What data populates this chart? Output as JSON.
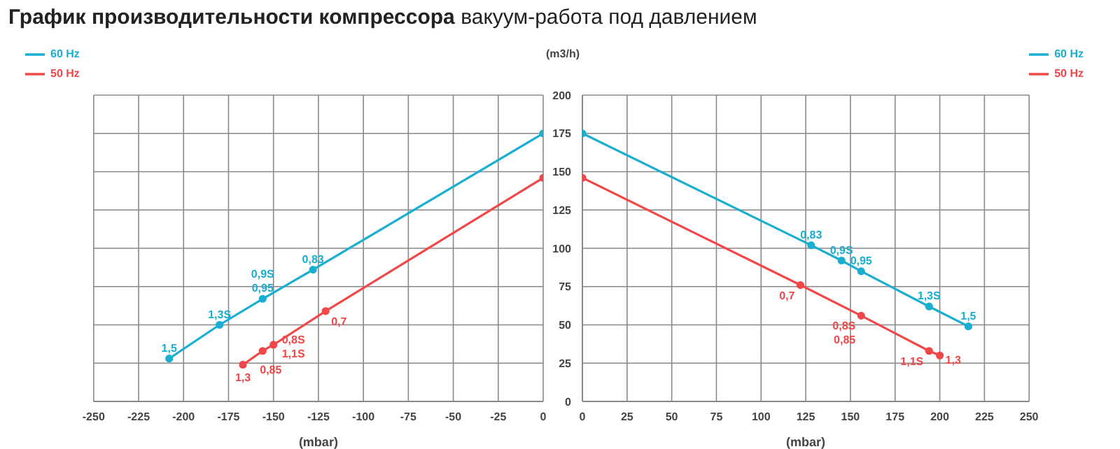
{
  "chart_data": [
    {
      "type": "line",
      "title": "График производительности компрессора",
      "subtitle": "вакуум-работа под давлением",
      "xlabel": "(mbar)",
      "xlim": [
        -250,
        0
      ],
      "xticks": [
        -250,
        -225,
        -200,
        -175,
        -150,
        -125,
        -100,
        -75,
        -50,
        -25,
        0
      ],
      "ylim": [
        0,
        200
      ],
      "yticks": [
        0,
        25,
        50,
        75,
        100,
        125,
        150,
        175,
        200
      ],
      "tick_labels": "x",
      "grid": true,
      "legend": "top left",
      "marker": "circle",
      "line_style": "solid",
      "series": [
        {
          "name": "60 Hz",
          "color": "#1aaed0",
          "x": [
            -208,
            -180,
            -156,
            -128,
            0
          ],
          "values": [
            28,
            50,
            67,
            86,
            175
          ]
        },
        {
          "name": "50 Hz",
          "color": "#f04848",
          "x": [
            -167,
            -156,
            -150,
            -121,
            0
          ],
          "values": [
            24,
            33,
            37,
            59,
            146
          ]
        }
      ],
      "annotations": [
        {
          "text": "1,5",
          "x": -208,
          "y": 28
        },
        {
          "text": "1,3S",
          "x": -180,
          "y": 50
        },
        {
          "text": "0,9S",
          "x": -156,
          "y": 67
        },
        {
          "text": "0,95",
          "x": -156,
          "y": 67
        },
        {
          "text": "0,83",
          "x": -128,
          "y": 86
        },
        {
          "text": "1,3",
          "x": -167,
          "y": 24
        },
        {
          "text": "0,85",
          "x": -156,
          "y": 33
        },
        {
          "text": "0,8S",
          "x": -150,
          "y": 37
        },
        {
          "text": "1,1S",
          "x": -150,
          "y": 37
        },
        {
          "text": "0,7",
          "x": -121,
          "y": 59
        }
      ]
    },
    {
      "type": "line",
      "xlabel": "(mbar)",
      "ylabel": "(m3/h)",
      "xlim": [
        0,
        250
      ],
      "xticks": [
        0,
        25,
        50,
        75,
        100,
        125,
        150,
        175,
        200,
        225,
        250
      ],
      "ylim": [
        0,
        200
      ],
      "yticks": [
        0,
        25,
        50,
        75,
        100,
        125,
        150,
        175,
        200
      ],
      "grid": true,
      "legend": "top right",
      "marker": "circle",
      "line_style": "solid",
      "series": [
        {
          "name": "60 Hz",
          "color": "#1aaed0",
          "x": [
            0,
            128,
            145,
            156,
            194,
            216
          ],
          "values": [
            175,
            102,
            92,
            85,
            62,
            49
          ]
        },
        {
          "name": "50 Hz",
          "color": "#f04848",
          "x": [
            0,
            122,
            156,
            194,
            200
          ],
          "values": [
            146,
            76,
            56,
            33,
            30
          ]
        }
      ],
      "annotations": [
        {
          "text": "0,83",
          "x": 128,
          "y": 102
        },
        {
          "text": "0,9S",
          "x": 145,
          "y": 92
        },
        {
          "text": "0,95",
          "x": 156,
          "y": 85
        },
        {
          "text": "1,3S",
          "x": 194,
          "y": 62
        },
        {
          "text": "1,5",
          "x": 216,
          "y": 49
        },
        {
          "text": "0,7",
          "x": 122,
          "y": 76
        },
        {
          "text": "0,8S",
          "x": 156,
          "y": 56
        },
        {
          "text": "0,85",
          "x": 156,
          "y": 56
        },
        {
          "text": "1,1S",
          "x": 194,
          "y": 33
        },
        {
          "text": "1,3",
          "x": 200,
          "y": 30
        }
      ]
    }
  ]
}
